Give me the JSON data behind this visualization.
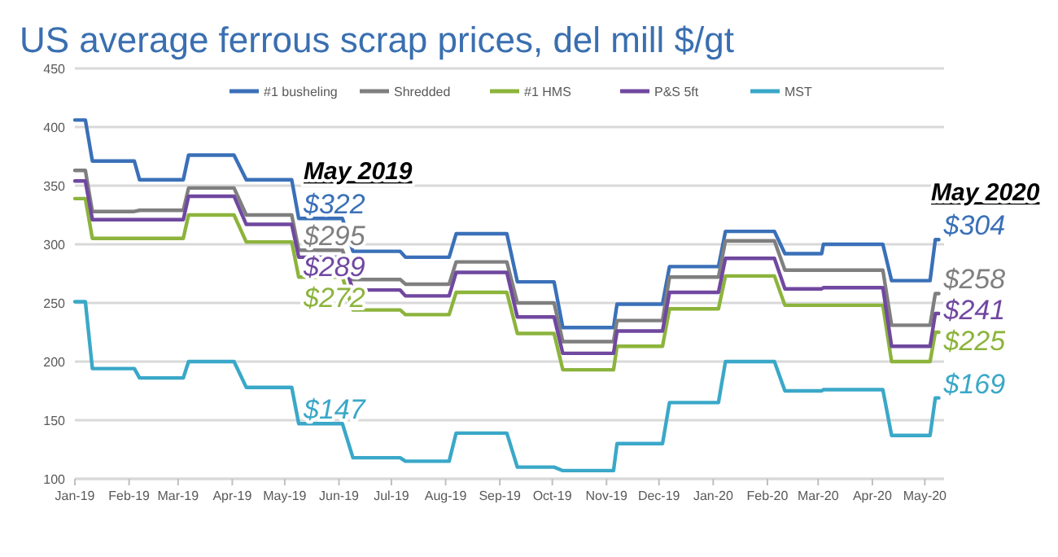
{
  "chart_data": {
    "type": "line",
    "title": "US average ferrous scrap prices, del mill $/gt",
    "x": [
      "2019-01-01",
      "2019-01-07",
      "2019-01-11",
      "2019-02-04",
      "2019-02-07",
      "2019-03-04",
      "2019-03-07",
      "2019-04-02",
      "2019-04-09",
      "2019-05-05",
      "2019-05-09",
      "2019-06-03",
      "2019-06-09",
      "2019-07-06",
      "2019-07-09",
      "2019-08-03",
      "2019-08-07",
      "2019-09-05",
      "2019-09-11",
      "2019-10-02",
      "2019-10-07",
      "2019-11-05",
      "2019-11-07",
      "2019-12-03",
      "2019-12-07",
      "2020-01-04",
      "2020-01-08",
      "2020-02-05",
      "2020-02-11",
      "2020-03-03",
      "2020-03-04",
      "2020-04-07",
      "2020-04-12",
      "2020-05-04",
      "2020-05-07",
      "2020-05-09"
    ],
    "series": [
      {
        "name": "#1 busheling",
        "color": "#3a70b8",
        "values": [
          406,
          406,
          371,
          371,
          355,
          355,
          376,
          376,
          355,
          355,
          322,
          322,
          294,
          294,
          289,
          289,
          309,
          309,
          268,
          268,
          229,
          229,
          249,
          249,
          281,
          281,
          311,
          311,
          292,
          292,
          300,
          300,
          269,
          269,
          304,
          304
        ]
      },
      {
        "name": "Shredded",
        "color": "#7f7f7f",
        "values": [
          363,
          363,
          328,
          328,
          329,
          329,
          348,
          348,
          325,
          325,
          295,
          295,
          270,
          270,
          266,
          266,
          285,
          285,
          250,
          250,
          217,
          217,
          235,
          235,
          272,
          272,
          303,
          303,
          278,
          278,
          278,
          278,
          231,
          231,
          258,
          258
        ]
      },
      {
        "name": "#1 HMS",
        "color": "#8cb43c",
        "values": [
          339,
          339,
          305,
          305,
          305,
          305,
          325,
          325,
          302,
          302,
          272,
          272,
          244,
          244,
          240,
          240,
          259,
          259,
          224,
          224,
          193,
          193,
          213,
          213,
          245,
          245,
          273,
          273,
          248,
          248,
          248,
          248,
          200,
          200,
          225,
          225
        ]
      },
      {
        "name": "P&S 5ft",
        "color": "#7048a0",
        "values": [
          354,
          354,
          321,
          321,
          321,
          321,
          341,
          341,
          317,
          317,
          289,
          289,
          261,
          261,
          256,
          256,
          276,
          276,
          238,
          238,
          207,
          207,
          226,
          226,
          259,
          259,
          288,
          288,
          262,
          262,
          263,
          263,
          213,
          213,
          241,
          241
        ]
      },
      {
        "name": "MST",
        "color": "#3aa8c8",
        "values": [
          251,
          251,
          194,
          194,
          186,
          186,
          200,
          200,
          178,
          178,
          147,
          147,
          118,
          118,
          115,
          115,
          139,
          139,
          110,
          110,
          107,
          107,
          130,
          130,
          165,
          165,
          200,
          200,
          175,
          175,
          176,
          176,
          137,
          137,
          169,
          169
        ]
      }
    ],
    "annotations": [
      "May 2019",
      {
        "text": "$322",
        "x": "2019-05-09",
        "y": 322
      },
      {
        "text": "$295",
        "x": "2019-05-09",
        "y": 295
      },
      {
        "text": "$289",
        "x": "2019-05-09",
        "y": 289
      },
      {
        "text": "$272",
        "x": "2019-05-09",
        "y": 272
      },
      {
        "text": "$147",
        "x": "2019-05-09",
        "y": 147
      },
      "May 2020",
      {
        "text": "$304",
        "x": "2020-05-09",
        "y": 304
      },
      {
        "text": "$258",
        "x": "2020-05-09",
        "y": 258
      },
      {
        "text": "$241",
        "x": "2020-05-09",
        "y": 241
      },
      {
        "text": "$225",
        "x": "2020-05-09",
        "y": 225
      },
      {
        "text": "$169",
        "x": "2020-05-09",
        "y": 169
      }
    ],
    "xlim": [
      "2019-01-01",
      "2020-05-12"
    ],
    "xticks": [
      {
        "value": "2019-01-01",
        "label": "Jan-19"
      },
      {
        "value": "2019-02-01",
        "label": "Feb-19"
      },
      {
        "value": "2019-03-01",
        "label": "Mar-19"
      },
      {
        "value": "2019-04-01",
        "label": "Apr-19"
      },
      {
        "value": "2019-05-01",
        "label": "May-19"
      },
      {
        "value": "2019-06-01",
        "label": "Jun-19"
      },
      {
        "value": "2019-07-01",
        "label": "Jul-19"
      },
      {
        "value": "2019-08-01",
        "label": "Aug-19"
      },
      {
        "value": "2019-09-01",
        "label": "Sep-19"
      },
      {
        "value": "2019-10-01",
        "label": "Oct-19"
      },
      {
        "value": "2019-11-01",
        "label": "Nov-19"
      },
      {
        "value": "2019-12-01",
        "label": "Dec-19"
      },
      {
        "value": "2020-01-01",
        "label": "Jan-20"
      },
      {
        "value": "2020-02-01",
        "label": "Feb-20"
      },
      {
        "value": "2020-03-01",
        "label": "Mar-20"
      },
      {
        "value": "2020-04-01",
        "label": "Apr-20"
      },
      {
        "value": "2020-05-01",
        "label": "May-20"
      }
    ],
    "ylim": [
      100,
      450
    ],
    "yticks": [
      100,
      150,
      200,
      250,
      300,
      350,
      400,
      450
    ],
    "grid": "y",
    "legend": "top",
    "marker": "none",
    "line_style": "solid"
  }
}
